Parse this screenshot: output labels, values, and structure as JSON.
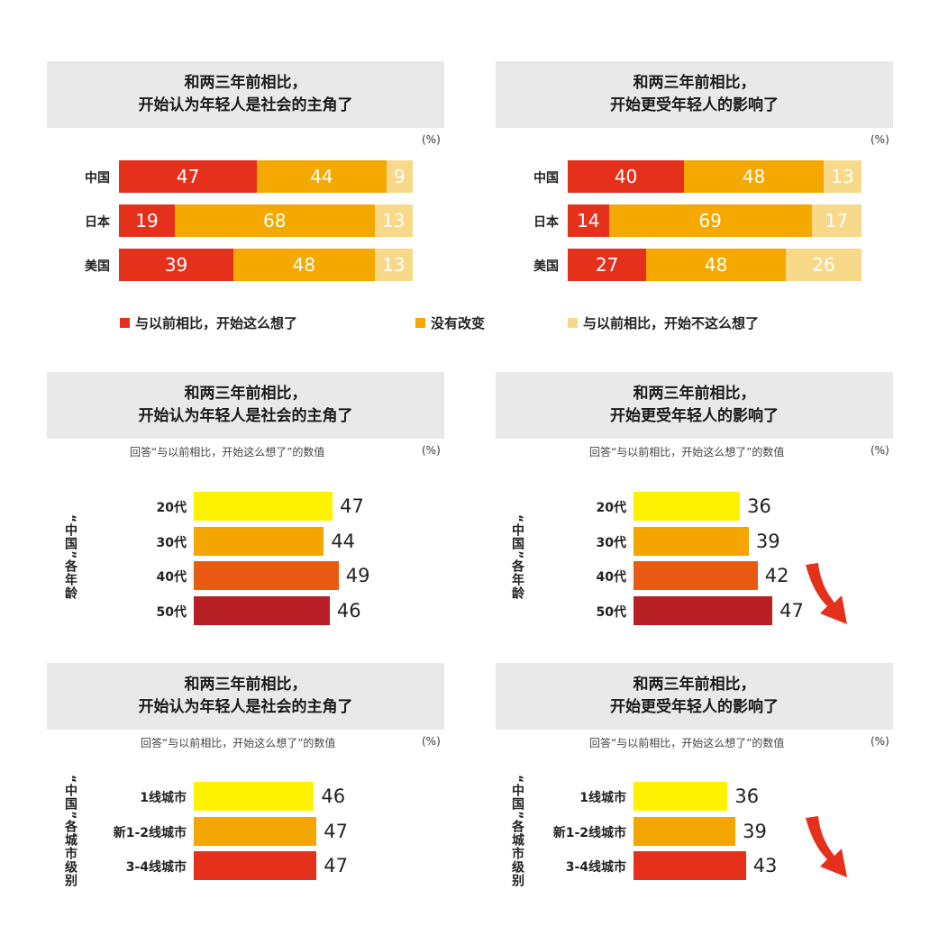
{
  "colors": {
    "red": "#e5301b",
    "orange": "#f4a800",
    "light": "#f8d98a",
    "yellow": "#fff200",
    "orange2": "#f4a500",
    "deep_orange": "#eb5a12",
    "crimson": "#b71f24",
    "header_bg": "#e9e9e9"
  },
  "titles": {
    "left_l1": "和两三年前相比，",
    "left_l2": "开始认为年轻人是社会的主角了",
    "right_l1": "和两三年前相比，",
    "right_l2": "开始更受年轻人的影响了"
  },
  "unit": "(%)",
  "note": "回答“与以前相比，开始这么想了”的数值",
  "group_labels": {
    "age": "“中国”各年龄",
    "city": "“中国”各城市级别"
  },
  "legend": [
    {
      "label": "与以前相比，开始这么想了",
      "color": "#e5301b"
    },
    {
      "label": "没有改变",
      "color": "#f4a800"
    },
    {
      "label": "与以前相比，开始不这么想了",
      "color": "#f8d98a"
    }
  ],
  "chart_data": [
    {
      "type": "bar",
      "stacked": true,
      "orientation": "horizontal",
      "title": "和两三年前相比，开始认为年轻人是社会的主角了",
      "unit": "(%)",
      "categories": [
        "中国",
        "日本",
        "美国"
      ],
      "series": [
        {
          "name": "与以前相比，开始这么想了",
          "values": [
            47,
            19,
            39
          ]
        },
        {
          "name": "没有改变",
          "values": [
            44,
            68,
            48
          ]
        },
        {
          "name": "与以前相比，开始不这么想了",
          "values": [
            9,
            13,
            13
          ]
        }
      ]
    },
    {
      "type": "bar",
      "stacked": true,
      "orientation": "horizontal",
      "title": "和两三年前相比，开始更受年轻人的影响了",
      "unit": "(%)",
      "categories": [
        "中国",
        "日本",
        "美国"
      ],
      "series": [
        {
          "name": "与以前相比，开始这么想了",
          "values": [
            40,
            14,
            27
          ]
        },
        {
          "name": "没有改变",
          "values": [
            48,
            69,
            48
          ]
        },
        {
          "name": "与以前相比，开始不这么想了",
          "values": [
            13,
            17,
            26
          ]
        }
      ]
    },
    {
      "type": "bar",
      "orientation": "horizontal",
      "title": "和两三年前相比，开始认为年轻人是社会的主角了",
      "subtitle": "回答“与以前相比，开始这么想了”的数值",
      "group_label": "“中国”各年龄",
      "unit": "(%)",
      "categories": [
        "20代",
        "30代",
        "40代",
        "50代"
      ],
      "values": [
        47,
        44,
        49,
        46
      ]
    },
    {
      "type": "bar",
      "orientation": "horizontal",
      "title": "和两三年前相比，开始更受年轻人的影响了",
      "subtitle": "回答“与以前相比，开始这么想了”的数值",
      "group_label": "“中国”各年龄",
      "unit": "(%)",
      "categories": [
        "20代",
        "30代",
        "40代",
        "50代"
      ],
      "values": [
        36,
        39,
        42,
        47
      ]
    },
    {
      "type": "bar",
      "orientation": "horizontal",
      "title": "和两三年前相比，开始认为年轻人是社会的主角了",
      "subtitle": "回答“与以前相比，开始这么想了”的数值",
      "group_label": "“中国”各城市级别",
      "unit": "(%)",
      "categories": [
        "1线城市",
        "新1-2线城市",
        "3-4线城市"
      ],
      "values": [
        46,
        47,
        47
      ]
    },
    {
      "type": "bar",
      "orientation": "horizontal",
      "title": "和两三年前相比，开始更受年轻人的影响了",
      "subtitle": "回答“与以前相比，开始这么想了”的数值",
      "group_label": "“中国”各城市级别",
      "unit": "(%)",
      "categories": [
        "1线城市",
        "新1-2线城市",
        "3-4线城市"
      ],
      "values": [
        36,
        39,
        43
      ]
    }
  ]
}
